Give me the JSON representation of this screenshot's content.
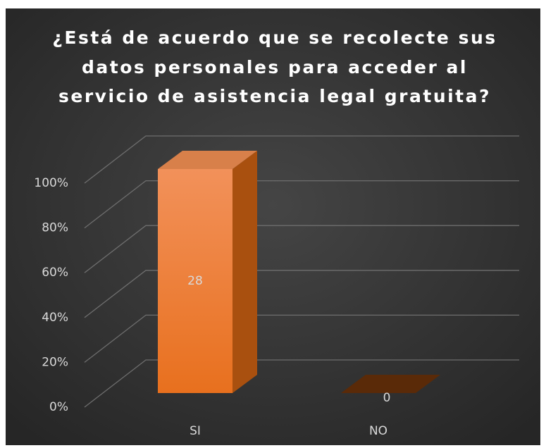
{
  "chart_data": {
    "type": "bar3d",
    "title": [
      "¿Está de acuerdo que se recolecte sus",
      "datos personales para acceder al",
      "servicio de asistencia legal gratuita?"
    ],
    "categories": [
      "SI",
      "NO"
    ],
    "values": [
      100,
      0
    ],
    "data_labels": [
      28,
      0
    ],
    "color": "#ee7a2e",
    "ylim": [
      0,
      100
    ],
    "yticks": [
      {
        "value": 0,
        "label": "0%"
      },
      {
        "value": 20,
        "label": "20%"
      },
      {
        "value": 40,
        "label": "40%"
      },
      {
        "value": 60,
        "label": "60%"
      },
      {
        "value": 80,
        "label": "80%"
      },
      {
        "value": 100,
        "label": "100%"
      }
    ],
    "grid": true
  }
}
